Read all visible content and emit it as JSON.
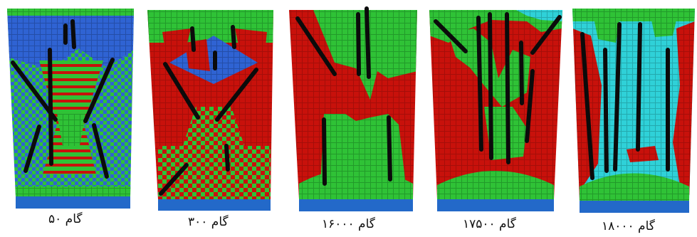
{
  "figure": {
    "colors": {
      "green": "#2fc236",
      "red": "#c8110b",
      "blue": "#2f63d3",
      "cyan": "#2fd1d8",
      "floor": "#2369c9",
      "fault": "#0b0b0b"
    },
    "panels": [
      {
        "id": "step-50",
        "caption": "گام ۵۰"
      },
      {
        "id": "step-300",
        "caption": "گام ۳۰۰"
      },
      {
        "id": "step-16000",
        "caption": "گام ۱۶۰۰۰"
      },
      {
        "id": "step-17500",
        "caption": "گام ۱۷۵۰۰"
      },
      {
        "id": "step-18000",
        "caption": "گام ۱۸۰۰۰"
      }
    ]
  }
}
